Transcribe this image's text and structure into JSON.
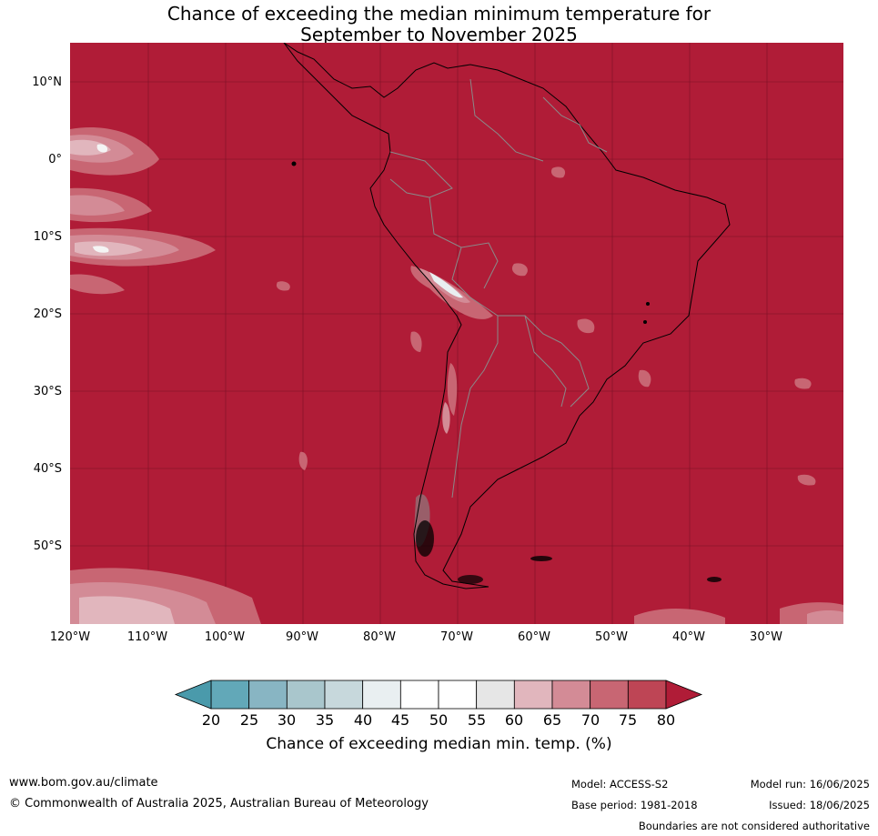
{
  "title": {
    "line1": "Chance of exceeding the median minimum temperature for",
    "line2": "September to November 2025"
  },
  "map": {
    "region": "South America",
    "background_color": "#b01c37",
    "lat_labels": [
      "10°N",
      "0°",
      "10°S",
      "20°S",
      "30°S",
      "40°S",
      "50°S"
    ],
    "lon_labels": [
      "120°W",
      "110°W",
      "100°W",
      "90°W",
      "80°W",
      "70°W",
      "60°W",
      "50°W",
      "40°W",
      "30°W"
    ]
  },
  "colorbar": {
    "ticks": [
      "20",
      "25",
      "30",
      "35",
      "40",
      "45",
      "50",
      "55",
      "60",
      "65",
      "70",
      "75",
      "80"
    ],
    "colors": [
      "#62a8b8",
      "#88b5c3",
      "#a9c6cc",
      "#c7d8dc",
      "#e9eff1",
      "#ffffff",
      "#ffffff",
      "#e6e6e6",
      "#e1b6bd",
      "#d38b96",
      "#c86673",
      "#be4555"
    ],
    "low_extend_color": "#4a9aab",
    "high_extend_color": "#b01c37",
    "title": "Chance of exceeding median min. temp. (%)"
  },
  "footer": {
    "website": "www.bom.gov.au/climate",
    "copyright": "© Commonwealth of Australia 2025, Australian Bureau of Meteorology",
    "model": "Model: ACCESS-S2",
    "base_period": "Base period: 1981-2018",
    "model_run": "Model run: 16/06/2025",
    "issued": "Issued: 18/06/2025",
    "disclaimer": "Boundaries are not considered authoritative"
  }
}
